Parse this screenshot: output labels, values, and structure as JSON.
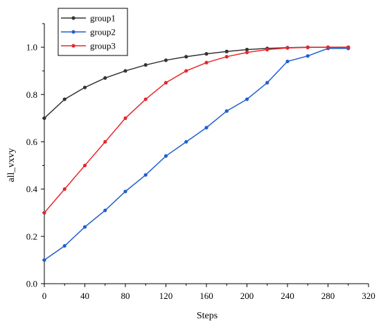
{
  "chart_data": {
    "type": "line",
    "title": "",
    "xlabel": "Steps",
    "ylabel": "all_vxvy",
    "xlim": [
      0,
      320
    ],
    "ylim": [
      0,
      1.1
    ],
    "xticks": [
      "0",
      "40",
      "80",
      "120",
      "160",
      "200",
      "240",
      "280",
      "320"
    ],
    "yticks": [
      "0.0",
      "0.2",
      "0.4",
      "0.6",
      "0.8",
      "1.0"
    ],
    "xtick_values": [
      0,
      40,
      80,
      120,
      160,
      200,
      240,
      280,
      320
    ],
    "ytick_values": [
      0,
      0.2,
      0.4,
      0.6,
      0.8,
      1.0
    ],
    "grid": false,
    "legend_position": "top-left",
    "x": [
      0,
      20,
      40,
      60,
      80,
      100,
      120,
      140,
      160,
      180,
      200,
      220,
      240,
      260,
      280,
      300
    ],
    "series": [
      {
        "name": "group1",
        "color": "#333333",
        "values": [
          0.7,
          0.78,
          0.83,
          0.87,
          0.9,
          0.925,
          0.945,
          0.96,
          0.972,
          0.982,
          0.99,
          0.995,
          0.998,
          1.0,
          1.0,
          1.0
        ]
      },
      {
        "name": "group2",
        "color": "#1f5fd1",
        "values": [
          0.1,
          0.16,
          0.24,
          0.31,
          0.39,
          0.46,
          0.54,
          0.6,
          0.66,
          0.73,
          0.78,
          0.85,
          0.94,
          0.963,
          0.995,
          0.995
        ]
      },
      {
        "name": "group3",
        "color": "#e8262b",
        "values": [
          0.3,
          0.4,
          0.5,
          0.6,
          0.7,
          0.78,
          0.85,
          0.9,
          0.935,
          0.96,
          0.978,
          0.99,
          0.997,
          0.999,
          1.0,
          1.0
        ]
      }
    ]
  }
}
